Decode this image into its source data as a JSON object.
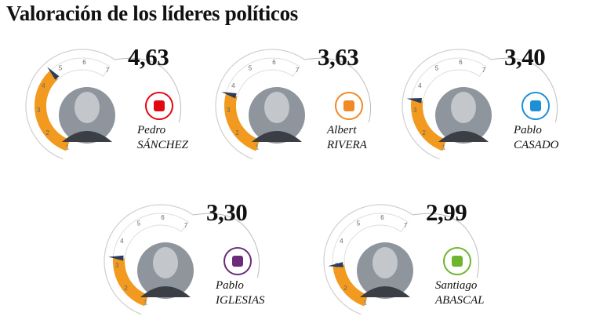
{
  "title": "Valoración de los líderes políticos",
  "chart_data": {
    "type": "gauge",
    "scale": [
      1,
      7
    ],
    "tick_labels": [
      "1",
      "2",
      "3",
      "4",
      "5",
      "6",
      "7"
    ],
    "colors": {
      "fill": "#f29a1f",
      "track": "#cfcfcf",
      "needle": "#2a3d5c"
    },
    "items": [
      {
        "first": "Pedro",
        "last": "SÁNCHEZ",
        "value": 4.63,
        "label": "4,63",
        "party_icon": "psoe-logo",
        "party_color": "#e30613"
      },
      {
        "first": "Albert",
        "last": "RIVERA",
        "value": 3.63,
        "label": "3,63",
        "party_icon": "ciudadanos-logo",
        "party_color": "#f08a24"
      },
      {
        "first": "Pablo",
        "last": "CASADO",
        "value": 3.4,
        "label": "3,40",
        "party_icon": "pp-logo",
        "party_color": "#1d8fd6"
      },
      {
        "first": "Pablo",
        "last": "IGLESIAS",
        "value": 3.3,
        "label": "3,30",
        "party_icon": "podemos-logo",
        "party_color": "#6b2a7a"
      },
      {
        "first": "Santiago",
        "last": "ABASCAL",
        "value": 2.99,
        "label": "2,99",
        "party_icon": "vox-logo",
        "party_color": "#6cb52d"
      }
    ]
  }
}
